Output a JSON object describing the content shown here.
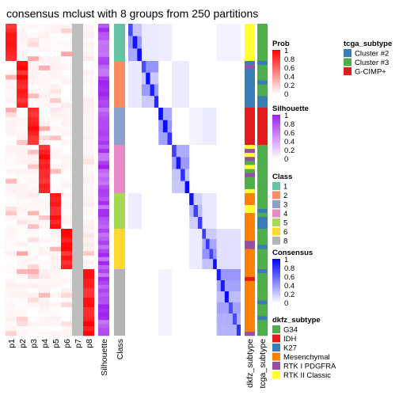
{
  "chart_data": {
    "type": "heatmap",
    "title": "consensus mclust with 8 groups from 250 partitions",
    "prob_columns": [
      "p1",
      "p2",
      "p3",
      "p4",
      "p5",
      "p6",
      "p7",
      "p8"
    ],
    "annotation_columns_left": [
      "Silhouette",
      "Class"
    ],
    "annotation_columns_right": [
      "dkfz_subtype",
      "tcga_subtype"
    ],
    "class_blocks": [
      {
        "class": "1",
        "fraction": 0.12
      },
      {
        "class": "2",
        "fraction": 0.15
      },
      {
        "class": "3",
        "fraction": 0.12
      },
      {
        "class": "4",
        "fraction": 0.155
      },
      {
        "class": "5",
        "fraction": 0.115
      },
      {
        "class": "6",
        "fraction": 0.13
      },
      {
        "class": "8",
        "fraction": 0.06
      }
    ],
    "class_to_prob_column": {
      "1": "p1",
      "2": "p2",
      "3": "p3",
      "4": "p4",
      "5": "p5",
      "6": "p6",
      "8": "p8"
    },
    "p7_constant": true,
    "legends": {
      "prob": {
        "title": "Prob",
        "ticks": [
          "1",
          "0.8",
          "0.6",
          "0.4",
          "0.2",
          "0"
        ],
        "low": "#ffffff",
        "high": "#ff0000"
      },
      "silhouette": {
        "title": "Silhouette",
        "ticks": [
          "1",
          "0.8",
          "0.6",
          "0.4",
          "0.2",
          "0"
        ],
        "low": "#ffffff",
        "high": "#a020f0"
      },
      "class": {
        "title": "Class",
        "items": [
          {
            "label": "1",
            "color": "#66c2a5"
          },
          {
            "label": "2",
            "color": "#fc8d62"
          },
          {
            "label": "3",
            "color": "#8da0cb"
          },
          {
            "label": "4",
            "color": "#e78ac3"
          },
          {
            "label": "5",
            "color": "#a6d854"
          },
          {
            "label": "6",
            "color": "#ffd92f"
          },
          {
            "label": "8",
            "color": "#b3b3b3"
          }
        ]
      },
      "consensus": {
        "title": "Consensus",
        "ticks": [
          "1",
          "0.8",
          "0.6",
          "0.4",
          "0.2",
          "0"
        ],
        "low": "#ffffff",
        "high": "#0000ff"
      },
      "tcga_subtype": {
        "title": "tcga_subtype",
        "items": [
          {
            "label": "Cluster #2",
            "color": "#377eb8"
          },
          {
            "label": "Cluster #3",
            "color": "#4daf4a"
          },
          {
            "label": "G-CIMP+",
            "color": "#e41a1c"
          }
        ]
      },
      "dkfz_subtype": {
        "title": "dkfz_subtype",
        "items": [
          {
            "label": "G34",
            "color": "#4daf4a"
          },
          {
            "label": "IDH",
            "color": "#e41a1c"
          },
          {
            "label": "K27",
            "color": "#377eb8"
          },
          {
            "label": "Mesenchymal",
            "color": "#ff7f00"
          },
          {
            "label": "RTK I PDGFRA",
            "color": "#984ea3"
          },
          {
            "label": "RTK II Classic",
            "color": "#ffff33"
          }
        ]
      }
    }
  }
}
